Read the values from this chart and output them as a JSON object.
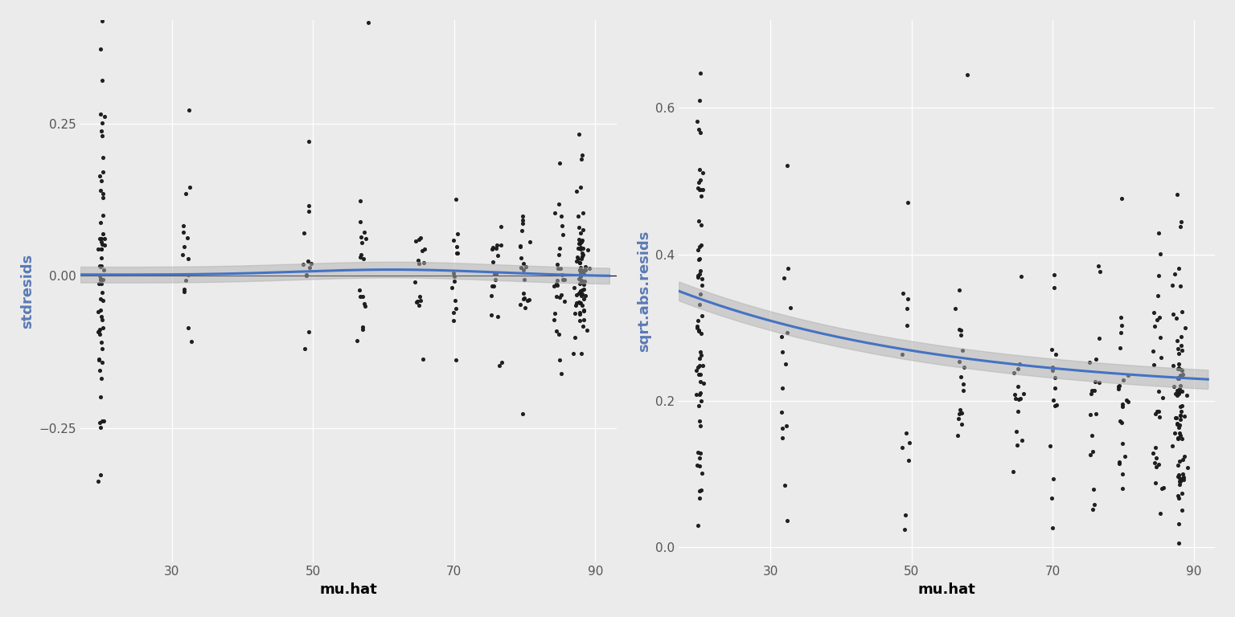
{
  "background_color": "#ebebeb",
  "panel_bg": "#ebebeb",
  "grid_color": "#ffffff",
  "point_color": "#1a1a1a",
  "point_size": 7,
  "smooth_color": "#4472C4",
  "smooth_lw": 2.2,
  "ci_color": "#b0b0b0",
  "ci_alpha": 0.5,
  "left_ylabel": "stdresids",
  "right_ylabel": "sqrt.abs.resids",
  "xlabel": "mu.hat",
  "left_ylim": [
    -0.47,
    0.42
  ],
  "right_ylim": [
    -0.02,
    0.72
  ],
  "left_yticks": [
    -0.25,
    0.0,
    0.25
  ],
  "right_yticks": [
    0.0,
    0.2,
    0.4,
    0.6
  ],
  "xlim": [
    17,
    93
  ],
  "xticks": [
    30,
    50,
    70,
    90
  ],
  "ylabel_color": "#5a7ab5",
  "tick_fontsize": 11,
  "label_fontsize": 13
}
